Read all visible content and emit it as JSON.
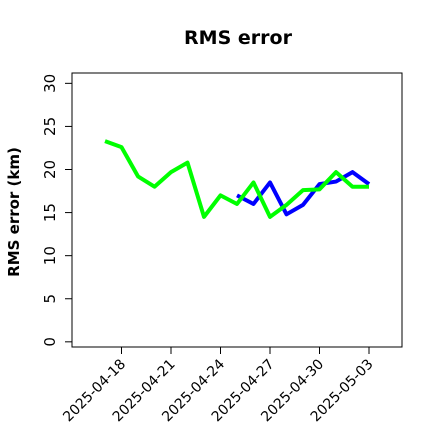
{
  "chart_data": {
    "type": "line",
    "title": "RMS error",
    "xlabel": "",
    "ylabel": "RMS error (km)",
    "ylim": [
      -0.6,
      31.2
    ],
    "xlim": [
      "2025-04-15",
      "2025-05-05"
    ],
    "grid": false,
    "legend": "none",
    "y_ticks": [
      0,
      5,
      10,
      15,
      20,
      25,
      30
    ],
    "x_ticks": [
      {
        "label": "2025-04-18",
        "color": "#000000"
      },
      {
        "label": "2025-04-21",
        "color": "#000000"
      },
      {
        "label": "2025-04-24",
        "color": "#228b22"
      },
      {
        "label": "2025-04-27",
        "color": "#000000"
      },
      {
        "label": "2025-04-30",
        "color": "#000000"
      },
      {
        "label": "2025-05-03",
        "color": "#000000"
      }
    ],
    "series": [
      {
        "color": "#0000ff",
        "x": [
          "2025-04-25",
          "2025-04-26",
          "2025-04-27",
          "2025-04-28",
          "2025-04-29",
          "2025-04-30",
          "2025-05-01",
          "2025-05-02",
          "2025-05-03"
        ],
        "values": [
          17.0,
          16.0,
          18.5,
          14.8,
          15.9,
          18.3,
          18.6,
          19.7,
          18.3
        ]
      },
      {
        "color": "#00ff00",
        "x": [
          "2025-04-17",
          "2025-04-18",
          "2025-04-19",
          "2025-04-20",
          "2025-04-21",
          "2025-04-22",
          "2025-04-23",
          "2025-04-24",
          "2025-04-25",
          "2025-04-26",
          "2025-04-27",
          "2025-04-28",
          "2025-04-29",
          "2025-04-30",
          "2025-05-01",
          "2025-05-02",
          "2025-05-03"
        ],
        "values": [
          23.3,
          22.6,
          19.2,
          18.0,
          19.7,
          20.8,
          14.5,
          17.0,
          16.0,
          18.5,
          14.5,
          15.9,
          17.6,
          17.7,
          19.7,
          18.0,
          18.0
        ]
      }
    ]
  }
}
